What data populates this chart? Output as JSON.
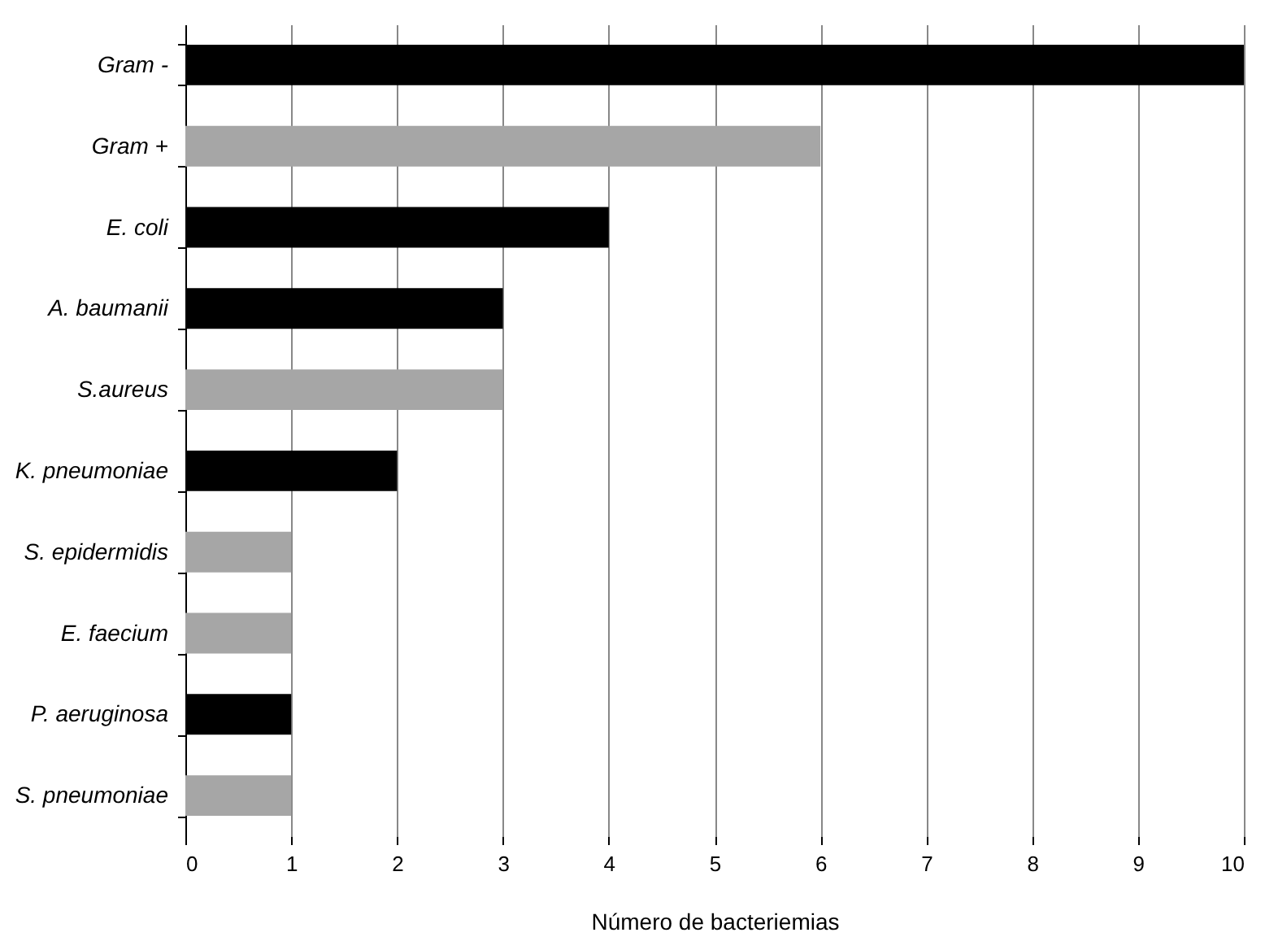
{
  "chart_data": {
    "type": "bar",
    "orientation": "horizontal",
    "xlabel": "Número de bacteriemias",
    "categories": [
      "Gram -",
      "Gram +",
      "E. coli",
      "A. baumanii",
      "S.aureus",
      "K. pneumoniae",
      "S. epidermidis",
      "E. faecium",
      "P. aeruginosa",
      "S. pneumoniae"
    ],
    "values": [
      10,
      6,
      4,
      3,
      3,
      2,
      1,
      1,
      1,
      1
    ],
    "colors": [
      "#000000",
      "#a6a6a6",
      "#000000",
      "#000000",
      "#a6a6a6",
      "#000000",
      "#a6a6a6",
      "#a6a6a6",
      "#000000",
      "#a6a6a6"
    ],
    "xlim": [
      0,
      10
    ],
    "xticks": [
      0,
      1,
      2,
      3,
      4,
      5,
      6,
      7,
      8,
      9,
      10
    ],
    "grid": "x",
    "legend": false
  }
}
